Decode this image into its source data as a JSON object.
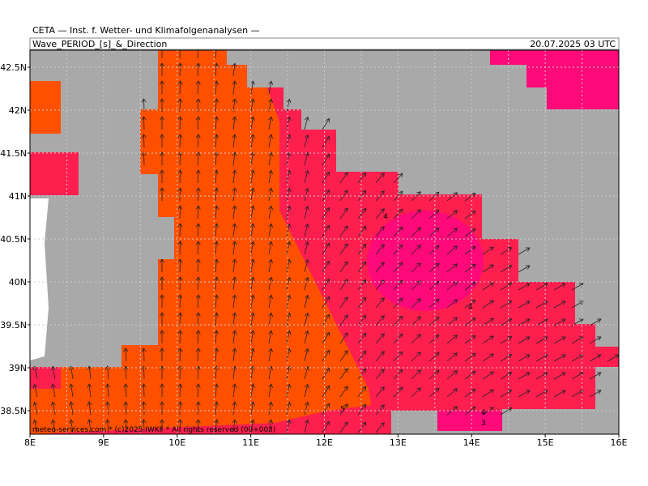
{
  "header": {
    "institute": "CETA — Inst. f. Wetter- und Klimafolgenanalysen —",
    "title": "Wave_PERIOD_[s]_&_Direction",
    "valid_time": "20.07.2025 03 UTC"
  },
  "axes": {
    "lat_labels": [
      "42.5N",
      "42N",
      "41.5N",
      "41N",
      "40.5N",
      "40N",
      "39.5N",
      "39N",
      "38.5N"
    ],
    "lon_labels": [
      "8E",
      "9E",
      "10E",
      "11E",
      "12E",
      "13E",
      "14E",
      "15E",
      "16E"
    ]
  },
  "contour_labels": [
    "4",
    "4",
    "5",
    "4",
    "3"
  ],
  "footer": "meteo-services.com * (c)2025 IWKF * All rights reserved (00+003)"
}
